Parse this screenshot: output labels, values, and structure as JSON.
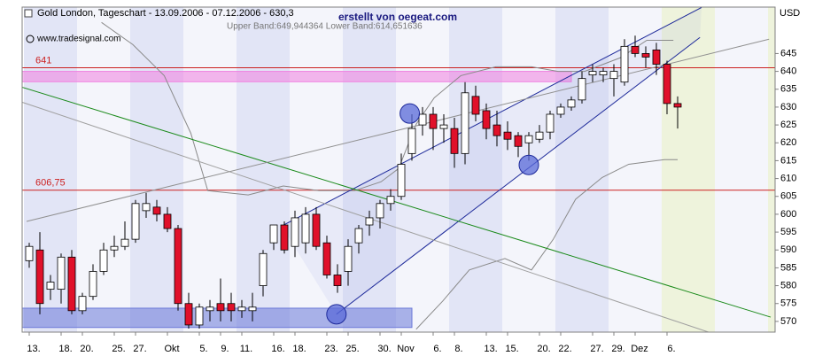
{
  "chart_data": {
    "type": "candlestick",
    "title": "Gold London, Tageschart - 13.09.2006 - 07.12.2006 - 630,3",
    "subtitle": "www.tradesignal.com",
    "credit": "erstellt von oegeat.com",
    "band_text": "Upper Band:649,944364 Lower Band:614,651636",
    "y_unit": "USD",
    "categories": [
      "13.",
      null,
      null,
      "18.",
      null,
      "20.",
      null,
      null,
      "25.",
      null,
      "27.",
      null,
      null,
      "Okt",
      null,
      null,
      "5.",
      null,
      "9.",
      null,
      "11.",
      null,
      null,
      "16.",
      null,
      "18.",
      null,
      null,
      "23.",
      null,
      "25.",
      null,
      null,
      "30.",
      null,
      "Nov",
      null,
      null,
      "6.",
      null,
      "8.",
      null,
      null,
      "13.",
      null,
      "15.",
      null,
      null,
      "20.",
      null,
      "22.",
      null,
      null,
      "27.",
      null,
      "29.",
      null,
      "Dez",
      null,
      null,
      "6.",
      null
    ],
    "open": [
      587,
      590,
      579,
      579,
      588,
      573,
      577,
      584,
      590,
      591,
      593,
      601,
      602,
      600,
      596,
      575,
      569,
      573,
      575,
      575,
      573,
      573,
      580,
      592,
      597,
      591,
      592,
      600,
      592,
      583,
      584,
      592,
      597,
      599,
      603,
      605,
      617,
      625,
      628,
      624,
      624,
      617,
      633,
      629,
      625,
      623,
      622,
      620,
      621,
      623,
      628,
      630,
      632,
      639,
      639,
      638,
      637,
      647,
      645,
      646,
      642,
      631
    ],
    "high": [
      592,
      595,
      583,
      589,
      590,
      578,
      586,
      592,
      594,
      598,
      604,
      606,
      604,
      602,
      597,
      578,
      575,
      576,
      582,
      578,
      576,
      578,
      590,
      597,
      598,
      601,
      602,
      602,
      594,
      586,
      593,
      597,
      601,
      604,
      607,
      617,
      628,
      630,
      630,
      628,
      627,
      637,
      636,
      631,
      629,
      626,
      623,
      623,
      625,
      629,
      631,
      633,
      640,
      642,
      641,
      642,
      649,
      650,
      647,
      648,
      643,
      633
    ],
    "low": [
      585,
      572,
      576,
      575,
      572,
      572,
      576,
      583,
      588,
      590,
      592,
      599,
      598,
      595,
      573,
      568,
      568,
      570,
      570,
      570,
      571,
      570,
      577,
      590,
      589,
      588,
      589,
      590,
      582,
      578,
      580,
      589,
      594,
      596,
      601,
      604,
      615,
      622,
      618,
      620,
      613,
      614,
      626,
      621,
      619,
      618,
      616,
      615,
      620,
      621,
      627,
      629,
      631,
      637,
      637,
      633,
      636,
      644,
      641,
      639,
      628,
      624
    ],
    "close": [
      591,
      575,
      581,
      588,
      573,
      577,
      584,
      590,
      591,
      593,
      603,
      603,
      600,
      596,
      575,
      569,
      574,
      574,
      573,
      573,
      574,
      574,
      589,
      597,
      590,
      599,
      600,
      591,
      583,
      580,
      591,
      596,
      599,
      603,
      605,
      614,
      624,
      628,
      624,
      625,
      617,
      634,
      628,
      624,
      622,
      621,
      619,
      622,
      623,
      628,
      630,
      632,
      638,
      640,
      640,
      640,
      647,
      645,
      644,
      642,
      631,
      630
    ],
    "up_color": "#ffffff",
    "down_color": "#e0102a",
    "ylim": [
      567,
      658
    ],
    "yticks": [
      570,
      575,
      580,
      585,
      590,
      595,
      600,
      605,
      610,
      615,
      620,
      625,
      630,
      635,
      640,
      645
    ],
    "hlines": [
      {
        "value": 641,
        "color": "#cc2020"
      },
      {
        "value": 606.75,
        "label": "606,75",
        "color": "#cc2020"
      }
    ],
    "zones": [
      {
        "x": [
          -0.7,
          51
        ],
        "y": [
          637.1,
          640
        ],
        "color": "#f080e0"
      },
      {
        "x": [
          -0.7,
          36
        ],
        "y": [
          568.3,
          573.7
        ],
        "color": "#6a78d8"
      }
    ],
    "trendlines": [
      {
        "x": [
          23.75,
          63.25
        ],
        "y": [
          596.7,
          657.9
        ],
        "color": "#1e2a9a"
      },
      {
        "x": [
          28.9,
          63.1
        ],
        "y": [
          572,
          649.5
        ],
        "color": "#1e2a9a"
      },
      {
        "x": [
          -0.7,
          69.75
        ],
        "y": [
          635.6,
          571.2
        ],
        "color": "#1a8a1a"
      },
      {
        "x": [
          -0.7,
          63.9
        ],
        "y": [
          631.4,
          567
        ],
        "color": "#a0a0a0"
      },
      {
        "x": [
          -0.25,
          69.6
        ],
        "y": [
          598,
          649
        ],
        "color": "#909090"
      }
    ],
    "bands": [
      {
        "color": "#8a8a8a",
        "x": [
          6.8,
          9.75,
          12.7,
          15.2,
          16.8,
          20.6,
          23.9,
          27.25,
          30.6,
          33.1,
          34.75,
          36.4,
          38.1,
          40.6,
          43.9,
          47.25,
          49.75,
          52.25,
          55.6,
          58.1,
          60.6
        ],
        "y": [
          653.7,
          647.5,
          638.8,
          622.7,
          606.6,
          605.4,
          607.9,
          606.6,
          606.6,
          609.1,
          612.8,
          625.2,
          632.6,
          638.8,
          641.3,
          641.3,
          640,
          640,
          643.8,
          648.7,
          648.7
        ]
      },
      {
        "color": "#8a8a8a",
        "x": [
          36.4,
          38.9,
          41.4,
          44.75,
          47.25,
          49.3,
          51.4,
          53.9,
          56.4,
          59.75,
          61
        ],
        "y": [
          567.8,
          575.7,
          584.4,
          587.6,
          584.4,
          593,
          604.2,
          610.3,
          614,
          615.3,
          615.3
        ]
      }
    ],
    "circles": [
      {
        "x": 35.8,
        "y": 628.2
      },
      {
        "x": 47,
        "y": 613.8
      },
      {
        "x": 28.9,
        "y": 572
      }
    ],
    "circle_color": "#5a6ad8"
  }
}
